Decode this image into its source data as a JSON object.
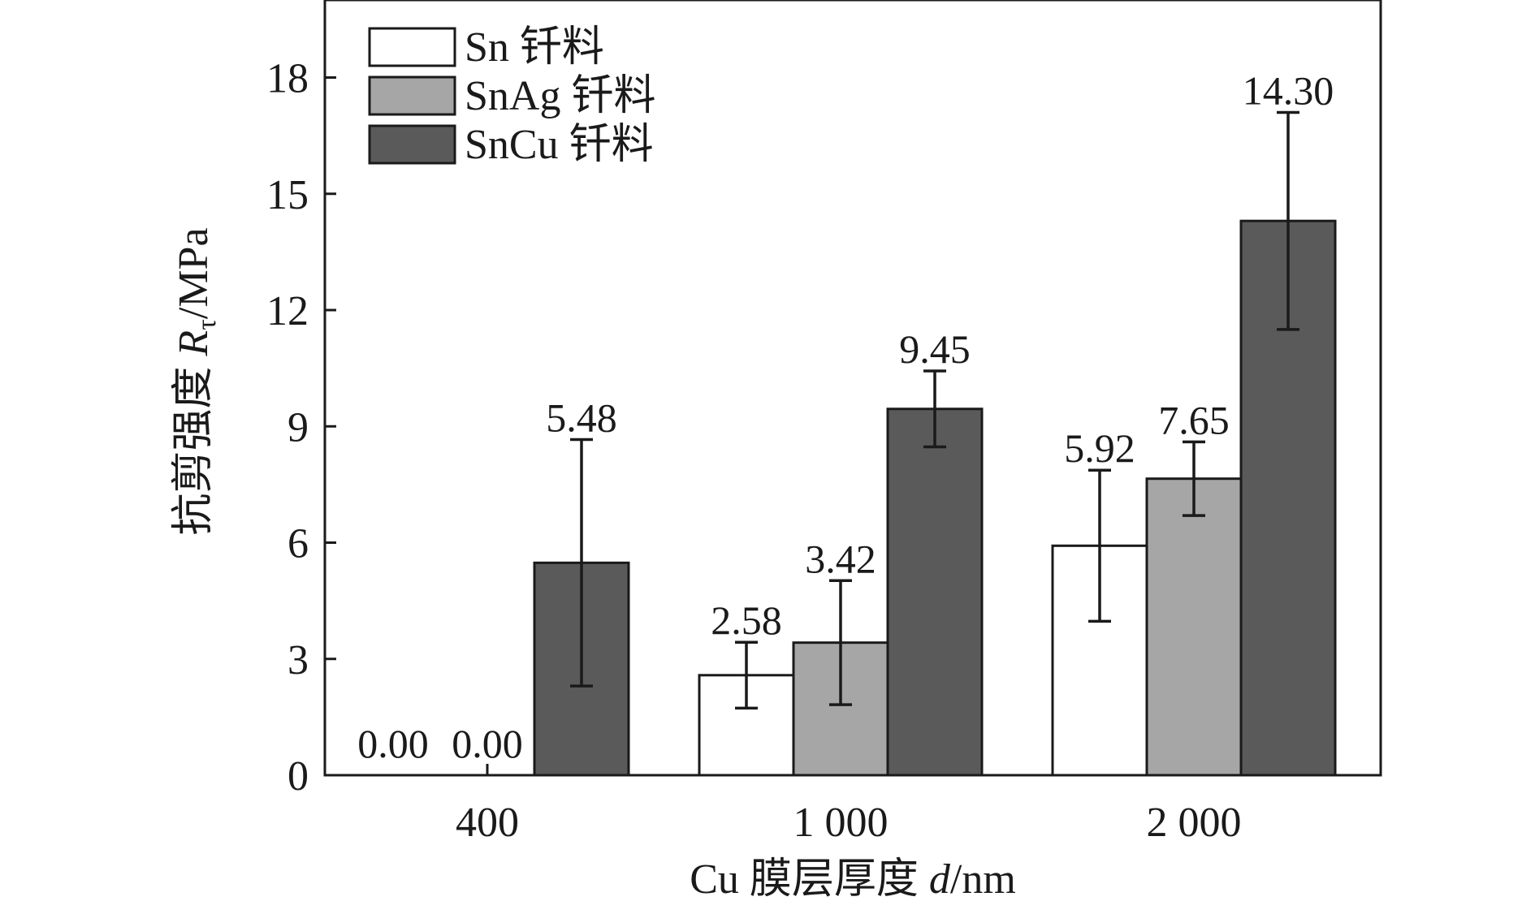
{
  "chart_data": {
    "type": "bar",
    "categories": [
      "400",
      "1 000",
      "2 000"
    ],
    "xlabel": "Cu 膜层厚度 d/nm",
    "xlabel_parts": {
      "prefix": "Cu 膜层厚度 ",
      "var": "d",
      "suffix": "/nm"
    },
    "ylabel": "抗剪强度 Rτ/MPa",
    "ylabel_parts": {
      "prefix": "抗剪强度 ",
      "var": "R",
      "sub": "τ",
      "suffix": "/MPa"
    },
    "ylim": [
      0,
      20
    ],
    "yticks": [
      0,
      3,
      6,
      9,
      12,
      15,
      18
    ],
    "legend_position": "top-left",
    "series": [
      {
        "name": "Sn 钎料",
        "color": "#ffffff",
        "values": [
          0.0,
          2.58,
          5.92
        ],
        "errors": [
          0.0,
          0.85,
          1.95
        ],
        "labels": [
          "0.00",
          "2.58",
          "5.92"
        ]
      },
      {
        "name": "SnAg 钎料",
        "color": "#a6a6a6",
        "values": [
          0.0,
          3.42,
          7.65
        ],
        "errors": [
          0.0,
          1.6,
          0.95
        ],
        "labels": [
          "0.00",
          "3.42",
          "7.65"
        ]
      },
      {
        "name": "SnCu 钎料",
        "color": "#5a5a5a",
        "values": [
          5.48,
          9.45,
          14.3
        ],
        "errors": [
          3.18,
          0.98,
          2.8
        ],
        "labels": [
          "5.48",
          "9.45",
          "14.30"
        ]
      }
    ]
  }
}
